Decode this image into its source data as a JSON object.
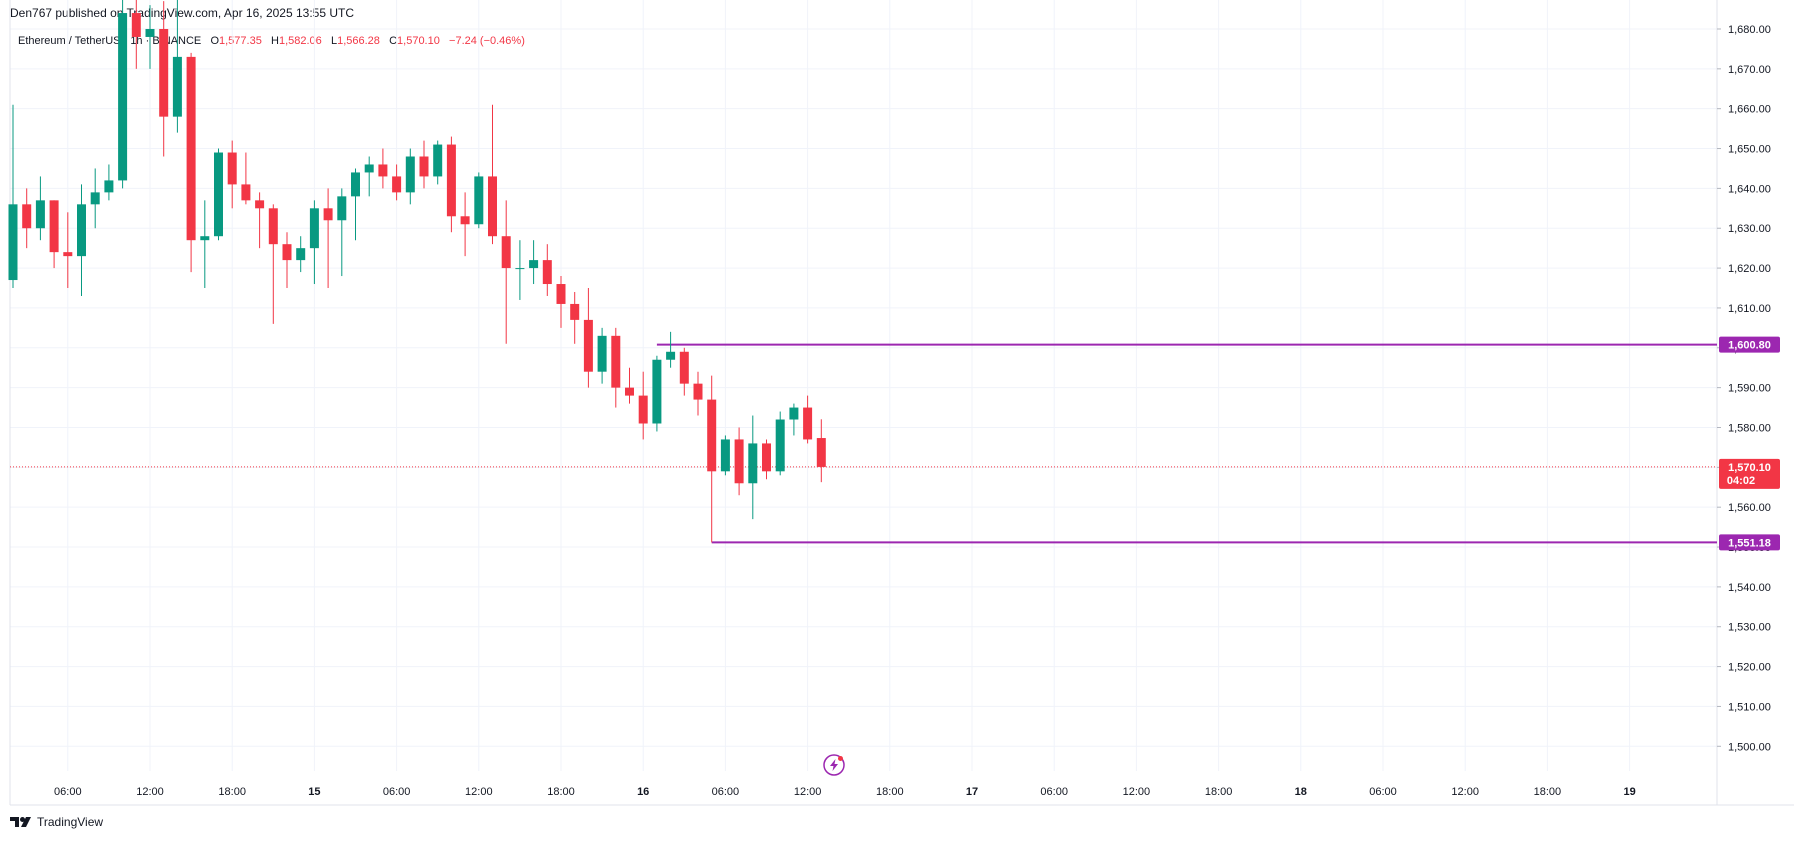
{
  "header": {
    "publisher": "Den767 published on TradingView.com, Apr 16, 2025 13:55 UTC"
  },
  "legend": {
    "symbol": "Ethereum / TetherUS",
    "interval": "1h",
    "exchange": "BINANCE",
    "o_label": "O",
    "o_value": "1,577.35",
    "h_label": "H",
    "h_value": "1,582.06",
    "l_label": "L",
    "l_value": "1,566.28",
    "c_label": "C",
    "c_value": "1,570.10",
    "change": "−7.24 (−0.46%)"
  },
  "footer": {
    "brand": "TradingView"
  },
  "colors": {
    "up": "#089981",
    "down": "#f23645",
    "level": "#9c27b0",
    "grid": "#f0f3fa",
    "axis_border": "#e0e3eb"
  },
  "chart_data": {
    "type": "candlestick",
    "symbol": "ETHUSDT",
    "interval": "1h",
    "ylim": [
      1493,
      1681
    ],
    "y_ticks": [
      1500,
      1510,
      1520,
      1530,
      1540,
      1550,
      1560,
      1570,
      1580,
      1590,
      1600,
      1610,
      1620,
      1630,
      1640,
      1650,
      1660,
      1670,
      1680
    ],
    "y_tick_labels": [
      "1,500.00",
      "1,510.00",
      "1,520.00",
      "1,530.00",
      "1,540.00",
      "1,550.00",
      "1,560.00",
      "1,570.00",
      "1,580.00",
      "1,590.00",
      "1,600.00",
      "1,610.00",
      "1,620.00",
      "1,630.00",
      "1,640.00",
      "1,650.00",
      "1,660.00",
      "1,670.00",
      "1,680.00"
    ],
    "x_ticks": [
      {
        "bar": 4,
        "label": "06:00",
        "bold": false
      },
      {
        "bar": 10,
        "label": "12:00",
        "bold": false
      },
      {
        "bar": 16,
        "label": "18:00",
        "bold": false
      },
      {
        "bar": 22,
        "label": "15",
        "bold": true
      },
      {
        "bar": 28,
        "label": "06:00",
        "bold": false
      },
      {
        "bar": 34,
        "label": "12:00",
        "bold": false
      },
      {
        "bar": 40,
        "label": "18:00",
        "bold": false
      },
      {
        "bar": 46,
        "label": "16",
        "bold": true
      },
      {
        "bar": 52,
        "label": "06:00",
        "bold": false
      },
      {
        "bar": 58,
        "label": "12:00",
        "bold": false
      },
      {
        "bar": 64,
        "label": "18:00",
        "bold": false
      },
      {
        "bar": 70,
        "label": "17",
        "bold": true
      },
      {
        "bar": 76,
        "label": "06:00",
        "bold": false
      },
      {
        "bar": 82,
        "label": "12:00",
        "bold": false
      },
      {
        "bar": 88,
        "label": "18:00",
        "bold": false
      },
      {
        "bar": 94,
        "label": "18",
        "bold": true
      },
      {
        "bar": 100,
        "label": "06:00",
        "bold": false
      },
      {
        "bar": 106,
        "label": "12:00",
        "bold": false
      },
      {
        "bar": 112,
        "label": "18:00",
        "bold": false
      },
      {
        "bar": 118,
        "label": "19",
        "bold": true
      }
    ],
    "candles": [
      {
        "o": 1617,
        "h": 1661,
        "l": 1615,
        "c": 1636
      },
      {
        "o": 1636,
        "h": 1640,
        "l": 1625,
        "c": 1630
      },
      {
        "o": 1630,
        "h": 1643,
        "l": 1627,
        "c": 1637
      },
      {
        "o": 1637,
        "h": 1637,
        "l": 1620,
        "c": 1624
      },
      {
        "o": 1624,
        "h": 1634,
        "l": 1615,
        "c": 1623
      },
      {
        "o": 1623,
        "h": 1641,
        "l": 1613,
        "c": 1636
      },
      {
        "o": 1636,
        "h": 1645,
        "l": 1630,
        "c": 1639
      },
      {
        "o": 1639,
        "h": 1646,
        "l": 1637,
        "c": 1642
      },
      {
        "o": 1642,
        "h": 1690,
        "l": 1640,
        "c": 1684
      },
      {
        "o": 1684,
        "h": 1690,
        "l": 1670,
        "c": 1678
      },
      {
        "o": 1678,
        "h": 1686,
        "l": 1670,
        "c": 1680
      },
      {
        "o": 1680,
        "h": 1687,
        "l": 1648,
        "c": 1658
      },
      {
        "o": 1658,
        "h": 1690,
        "l": 1654,
        "c": 1673
      },
      {
        "o": 1673,
        "h": 1674,
        "l": 1619,
        "c": 1627
      },
      {
        "o": 1627,
        "h": 1637,
        "l": 1615,
        "c": 1628
      },
      {
        "o": 1628,
        "h": 1650,
        "l": 1627,
        "c": 1649
      },
      {
        "o": 1649,
        "h": 1652,
        "l": 1635,
        "c": 1641
      },
      {
        "o": 1641,
        "h": 1649,
        "l": 1636,
        "c": 1637
      },
      {
        "o": 1637,
        "h": 1639,
        "l": 1625,
        "c": 1635
      },
      {
        "o": 1635,
        "h": 1636,
        "l": 1606,
        "c": 1626
      },
      {
        "o": 1626,
        "h": 1629,
        "l": 1615,
        "c": 1622
      },
      {
        "o": 1622,
        "h": 1628,
        "l": 1619,
        "c": 1625
      },
      {
        "o": 1625,
        "h": 1637,
        "l": 1616,
        "c": 1635
      },
      {
        "o": 1635,
        "h": 1640,
        "l": 1615,
        "c": 1632
      },
      {
        "o": 1632,
        "h": 1640,
        "l": 1618,
        "c": 1638
      },
      {
        "o": 1638,
        "h": 1645,
        "l": 1627,
        "c": 1644
      },
      {
        "o": 1644,
        "h": 1648,
        "l": 1638,
        "c": 1646
      },
      {
        "o": 1646,
        "h": 1650,
        "l": 1640,
        "c": 1643
      },
      {
        "o": 1643,
        "h": 1646,
        "l": 1637,
        "c": 1639
      },
      {
        "o": 1639,
        "h": 1650,
        "l": 1636,
        "c": 1648
      },
      {
        "o": 1648,
        "h": 1652,
        "l": 1640,
        "c": 1643
      },
      {
        "o": 1643,
        "h": 1652,
        "l": 1641,
        "c": 1651
      },
      {
        "o": 1651,
        "h": 1653,
        "l": 1629,
        "c": 1633
      },
      {
        "o": 1633,
        "h": 1639,
        "l": 1623,
        "c": 1631
      },
      {
        "o": 1631,
        "h": 1644,
        "l": 1630,
        "c": 1643
      },
      {
        "o": 1643,
        "h": 1661,
        "l": 1626,
        "c": 1628
      },
      {
        "o": 1628,
        "h": 1637,
        "l": 1601,
        "c": 1620
      },
      {
        "o": 1620,
        "h": 1627,
        "l": 1612,
        "c": 1620
      },
      {
        "o": 1620,
        "h": 1627,
        "l": 1616,
        "c": 1622
      },
      {
        "o": 1622,
        "h": 1626,
        "l": 1613,
        "c": 1616
      },
      {
        "o": 1616,
        "h": 1618,
        "l": 1605,
        "c": 1611
      },
      {
        "o": 1611,
        "h": 1614,
        "l": 1601,
        "c": 1607
      },
      {
        "o": 1607,
        "h": 1615,
        "l": 1590,
        "c": 1594
      },
      {
        "o": 1594,
        "h": 1605,
        "l": 1591,
        "c": 1603
      },
      {
        "o": 1603,
        "h": 1605,
        "l": 1585,
        "c": 1590
      },
      {
        "o": 1590,
        "h": 1595,
        "l": 1586,
        "c": 1588
      },
      {
        "o": 1588,
        "h": 1594,
        "l": 1577,
        "c": 1581
      },
      {
        "o": 1581,
        "h": 1598,
        "l": 1579,
        "c": 1597
      },
      {
        "o": 1597,
        "h": 1604,
        "l": 1595,
        "c": 1599
      },
      {
        "o": 1599,
        "h": 1600,
        "l": 1588,
        "c": 1591
      },
      {
        "o": 1591,
        "h": 1594,
        "l": 1583,
        "c": 1587
      },
      {
        "o": 1587,
        "h": 1593,
        "l": 1551.18,
        "c": 1569
      },
      {
        "o": 1569,
        "h": 1578,
        "l": 1568,
        "c": 1577
      },
      {
        "o": 1577,
        "h": 1580,
        "l": 1563,
        "c": 1566
      },
      {
        "o": 1566,
        "h": 1583,
        "l": 1557,
        "c": 1576
      },
      {
        "o": 1576,
        "h": 1577,
        "l": 1567,
        "c": 1569
      },
      {
        "o": 1569,
        "h": 1584,
        "l": 1568,
        "c": 1582
      },
      {
        "o": 1582,
        "h": 1586,
        "l": 1578,
        "c": 1585
      },
      {
        "o": 1585,
        "h": 1588,
        "l": 1576,
        "c": 1577
      },
      {
        "o": 1577.35,
        "h": 1582.06,
        "l": 1566.28,
        "c": 1570.1
      }
    ],
    "levels": [
      {
        "price": 1600.8,
        "label": "1,600.80",
        "from_bar": 47
      },
      {
        "price": 1551.18,
        "label": "1,551.18",
        "from_bar": 51
      }
    ],
    "last_price": {
      "price": 1570.1,
      "label": "1,570.10",
      "countdown": "04:02"
    }
  }
}
